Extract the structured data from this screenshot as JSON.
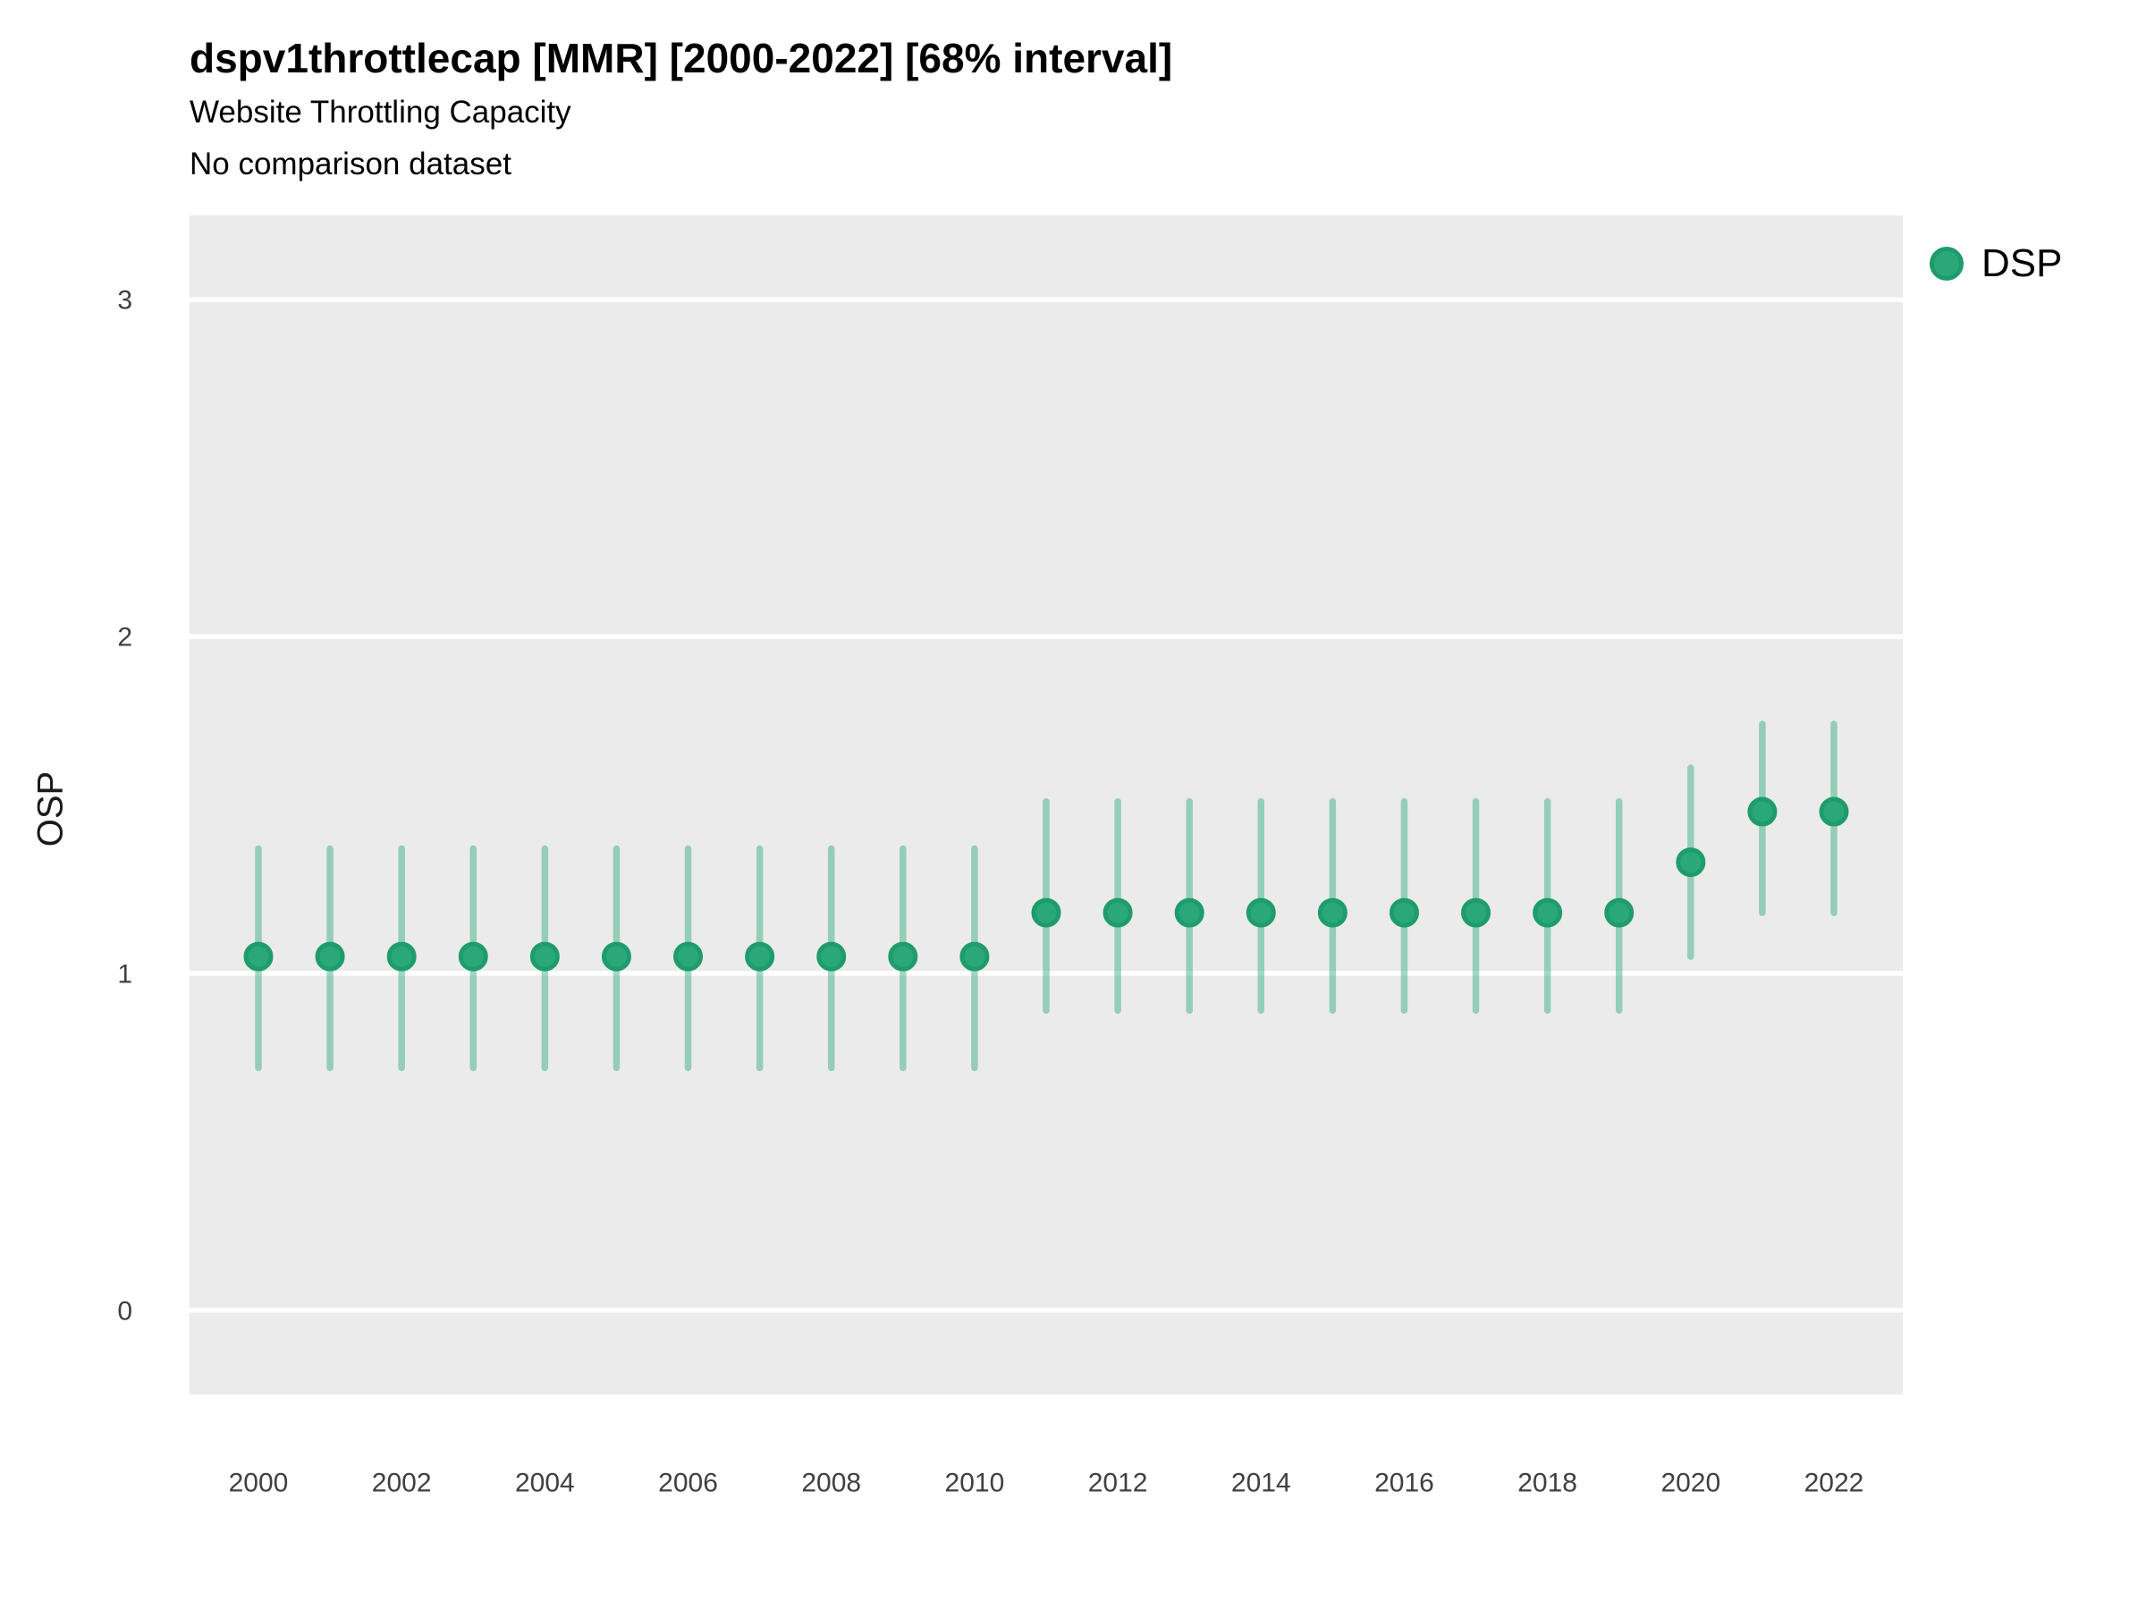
{
  "header": {
    "title": "dspv1throttlecap [MMR] [2000-2022] [68% interval]",
    "subtitle": "Website Throttling Capacity",
    "subtitle2": "No comparison dataset"
  },
  "legend": {
    "items": [
      {
        "label": "DSP",
        "color": "#2BA87A"
      }
    ],
    "position": "right-top"
  },
  "chart_data": {
    "type": "scatter",
    "title": "dspv1throttlecap [MMR] [2000-2022] [68% interval]",
    "subtitle": "Website Throttling Capacity",
    "subtitle2": "No comparison dataset",
    "xlabel": "",
    "ylabel": "OSP",
    "interval_label": "68% interval",
    "x": [
      2000,
      2001,
      2002,
      2003,
      2004,
      2005,
      2006,
      2007,
      2008,
      2009,
      2010,
      2011,
      2012,
      2013,
      2014,
      2015,
      2016,
      2017,
      2018,
      2019,
      2020,
      2021,
      2022
    ],
    "series": [
      {
        "name": "DSP",
        "values": [
          1.05,
          1.05,
          1.05,
          1.05,
          1.05,
          1.05,
          1.05,
          1.05,
          1.05,
          1.05,
          1.05,
          1.18,
          1.18,
          1.18,
          1.18,
          1.18,
          1.18,
          1.18,
          1.18,
          1.18,
          1.33,
          1.48,
          1.48
        ],
        "interval_low": [
          0.72,
          0.72,
          0.72,
          0.72,
          0.72,
          0.72,
          0.72,
          0.72,
          0.72,
          0.72,
          0.72,
          0.89,
          0.89,
          0.89,
          0.89,
          0.89,
          0.89,
          0.89,
          0.89,
          0.89,
          1.05,
          1.18,
          1.18
        ],
        "interval_high": [
          1.37,
          1.37,
          1.37,
          1.37,
          1.37,
          1.37,
          1.37,
          1.37,
          1.37,
          1.37,
          1.37,
          1.51,
          1.51,
          1.51,
          1.51,
          1.51,
          1.51,
          1.51,
          1.51,
          1.51,
          1.61,
          1.74,
          1.74
        ]
      }
    ],
    "x_ticks": [
      2000,
      2002,
      2004,
      2006,
      2008,
      2010,
      2012,
      2014,
      2016,
      2018,
      2020,
      2022
    ],
    "y_ticks": [
      0,
      1,
      2,
      3
    ],
    "ylim": [
      -0.25,
      3.25
    ],
    "grid": "horizontal-only",
    "legend_position": "right",
    "colors": {
      "panel_background": "#EBEBEB",
      "gridline": "#FFFFFF",
      "point_fill": "#2BA87A",
      "point_stroke": "#1E9C6C",
      "error_bar": "rgba(42,169,121,0.45)",
      "tick_text": "#404040"
    }
  }
}
